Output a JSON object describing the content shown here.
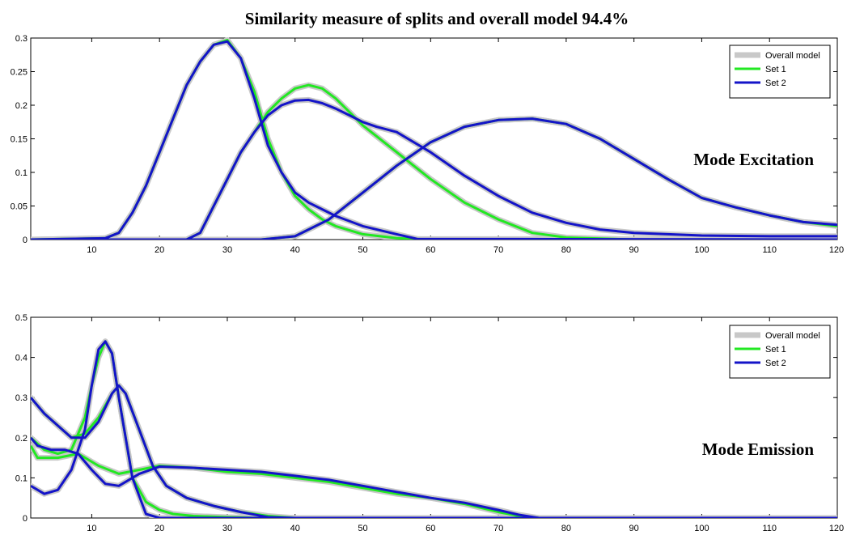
{
  "title": "Similarity measure of splits and overall model 94.4%",
  "colors": {
    "overall": "#c8c8c8",
    "set1": "#22e822",
    "set2": "#1414c8"
  },
  "chart_data": [
    {
      "type": "line",
      "annotation": "Mode Excitation",
      "xlim": [
        1,
        120
      ],
      "ylim": [
        0,
        0.3
      ],
      "xticks": [
        10,
        20,
        30,
        40,
        50,
        60,
        70,
        80,
        90,
        100,
        110,
        120
      ],
      "yticks": [
        0,
        0.05,
        0.1,
        0.15,
        0.2,
        0.25,
        0.3
      ],
      "ytick_labels": [
        "0",
        "0.05",
        "0.1",
        "0.15",
        "0.2",
        "0.25",
        "0.3"
      ],
      "legend": {
        "position": "top-right",
        "entries": [
          "Overall model",
          "Set 1",
          "Set 2"
        ]
      },
      "series": [
        {
          "name": "Set 1",
          "component": 1,
          "x": [
            1,
            12,
            14,
            16,
            18,
            20,
            22,
            24,
            26,
            28,
            30,
            32,
            34,
            36,
            38,
            40,
            42,
            44,
            46,
            50,
            55,
            60,
            120
          ],
          "y": [
            0,
            0.002,
            0.01,
            0.04,
            0.08,
            0.13,
            0.18,
            0.23,
            0.265,
            0.29,
            0.297,
            0.27,
            0.22,
            0.15,
            0.1,
            0.065,
            0.045,
            0.03,
            0.02,
            0.008,
            0.002,
            0,
            0
          ]
        },
        {
          "name": "Set 1",
          "component": 2,
          "x": [
            1,
            24,
            26,
            28,
            30,
            32,
            34,
            36,
            38,
            40,
            42,
            44,
            46,
            48,
            50,
            55,
            60,
            65,
            70,
            75,
            80,
            90,
            120
          ],
          "y": [
            0,
            0,
            0.01,
            0.05,
            0.09,
            0.13,
            0.16,
            0.19,
            0.21,
            0.225,
            0.23,
            0.225,
            0.21,
            0.19,
            0.17,
            0.13,
            0.09,
            0.055,
            0.03,
            0.01,
            0.003,
            0,
            0
          ]
        },
        {
          "name": "Set 1",
          "component": 3,
          "x": [
            1,
            35,
            40,
            45,
            50,
            55,
            60,
            65,
            70,
            75,
            80,
            85,
            90,
            95,
            100,
            105,
            110,
            115,
            120
          ],
          "y": [
            0,
            0,
            0.005,
            0.03,
            0.07,
            0.11,
            0.145,
            0.168,
            0.178,
            0.18,
            0.172,
            0.15,
            0.12,
            0.09,
            0.062,
            0.048,
            0.036,
            0.026,
            0.02
          ]
        },
        {
          "name": "Set 2",
          "component": 1,
          "x": [
            1,
            12,
            14,
            16,
            18,
            20,
            22,
            24,
            26,
            28,
            30,
            32,
            34,
            36,
            38,
            40,
            42,
            44,
            46,
            50,
            55,
            58,
            120
          ],
          "y": [
            0,
            0.002,
            0.01,
            0.04,
            0.08,
            0.13,
            0.18,
            0.23,
            0.265,
            0.29,
            0.295,
            0.27,
            0.21,
            0.14,
            0.1,
            0.07,
            0.055,
            0.045,
            0.035,
            0.02,
            0.008,
            0.001,
            0
          ]
        },
        {
          "name": "Set 2",
          "component": 2,
          "x": [
            1,
            24,
            26,
            28,
            30,
            32,
            34,
            36,
            38,
            40,
            42,
            44,
            46,
            48,
            50,
            52,
            55,
            60,
            65,
            70,
            75,
            80,
            85,
            90,
            100,
            110,
            120
          ],
          "y": [
            0,
            0,
            0.01,
            0.05,
            0.09,
            0.13,
            0.16,
            0.185,
            0.2,
            0.207,
            0.208,
            0.203,
            0.195,
            0.185,
            0.175,
            0.168,
            0.16,
            0.13,
            0.095,
            0.065,
            0.04,
            0.025,
            0.015,
            0.01,
            0.006,
            0.005,
            0.005
          ]
        },
        {
          "name": "Set 2",
          "component": 3,
          "x": [
            1,
            35,
            40,
            45,
            50,
            55,
            60,
            65,
            70,
            75,
            80,
            85,
            90,
            95,
            100,
            105,
            110,
            115,
            120
          ],
          "y": [
            0,
            0,
            0.005,
            0.03,
            0.07,
            0.11,
            0.145,
            0.168,
            0.178,
            0.18,
            0.172,
            0.15,
            0.12,
            0.09,
            0.062,
            0.048,
            0.036,
            0.026,
            0.022
          ]
        }
      ]
    },
    {
      "type": "line",
      "annotation": "Mode Emission",
      "xlim": [
        1,
        120
      ],
      "ylim": [
        0,
        0.5
      ],
      "xticks": [
        10,
        20,
        30,
        40,
        50,
        60,
        70,
        80,
        90,
        100,
        110,
        120
      ],
      "yticks": [
        0,
        0.1,
        0.2,
        0.3,
        0.4,
        0.5
      ],
      "ytick_labels": [
        "0",
        "0.1",
        "0.2",
        "0.3",
        "0.4",
        "0.5"
      ],
      "legend": {
        "position": "top-right",
        "entries": [
          "Overall model",
          "Set 1",
          "Set 2"
        ]
      },
      "series": [
        {
          "name": "Set 1",
          "component": 1,
          "x": [
            1,
            3,
            5,
            7,
            9,
            10,
            11,
            12,
            13,
            14,
            16,
            18,
            20,
            22,
            25,
            30,
            35,
            40,
            120
          ],
          "y": [
            0.2,
            0.17,
            0.16,
            0.17,
            0.25,
            0.33,
            0.4,
            0.44,
            0.41,
            0.3,
            0.1,
            0.04,
            0.02,
            0.01,
            0.005,
            0.002,
            0,
            0,
            0
          ]
        },
        {
          "name": "Set 1",
          "component": 2,
          "x": [
            1,
            3,
            5,
            7,
            9,
            11,
            13,
            14,
            15,
            17,
            19,
            21,
            24,
            28,
            32,
            36,
            40,
            120
          ],
          "y": [
            0.3,
            0.26,
            0.23,
            0.2,
            0.21,
            0.25,
            0.31,
            0.33,
            0.31,
            0.22,
            0.13,
            0.08,
            0.05,
            0.03,
            0.015,
            0.005,
            0,
            0
          ]
        },
        {
          "name": "Set 1",
          "component": 3,
          "x": [
            1,
            2,
            5,
            8,
            11,
            14,
            17,
            20,
            25,
            30,
            35,
            40,
            45,
            50,
            55,
            60,
            65,
            70,
            73,
            76,
            120
          ],
          "y": [
            0.18,
            0.15,
            0.15,
            0.16,
            0.13,
            0.11,
            0.12,
            0.13,
            0.125,
            0.115,
            0.11,
            0.1,
            0.09,
            0.075,
            0.06,
            0.05,
            0.035,
            0.015,
            0.005,
            0,
            0
          ]
        },
        {
          "name": "Set 2",
          "component": 1,
          "x": [
            1,
            3,
            5,
            7,
            9,
            10,
            11,
            12,
            13,
            14,
            16,
            18,
            20,
            120
          ],
          "y": [
            0.08,
            0.06,
            0.07,
            0.12,
            0.22,
            0.33,
            0.42,
            0.44,
            0.41,
            0.3,
            0.1,
            0.01,
            0,
            0
          ]
        },
        {
          "name": "Set 2",
          "component": 2,
          "x": [
            1,
            3,
            5,
            7,
            9,
            11,
            13,
            14,
            15,
            17,
            19,
            21,
            24,
            28,
            32,
            36,
            40,
            120
          ],
          "y": [
            0.3,
            0.26,
            0.23,
            0.2,
            0.2,
            0.24,
            0.31,
            0.33,
            0.31,
            0.22,
            0.13,
            0.08,
            0.05,
            0.03,
            0.015,
            0.002,
            0,
            0
          ]
        },
        {
          "name": "Set 2",
          "component": 3,
          "x": [
            1,
            2,
            4,
            6,
            8,
            10,
            12,
            14,
            17,
            20,
            25,
            30,
            35,
            40,
            45,
            50,
            55,
            60,
            65,
            70,
            73,
            76,
            120
          ],
          "y": [
            0.2,
            0.18,
            0.17,
            0.17,
            0.16,
            0.12,
            0.085,
            0.08,
            0.11,
            0.128,
            0.125,
            0.12,
            0.115,
            0.105,
            0.095,
            0.08,
            0.065,
            0.05,
            0.038,
            0.02,
            0.008,
            0,
            0
          ]
        }
      ]
    }
  ]
}
